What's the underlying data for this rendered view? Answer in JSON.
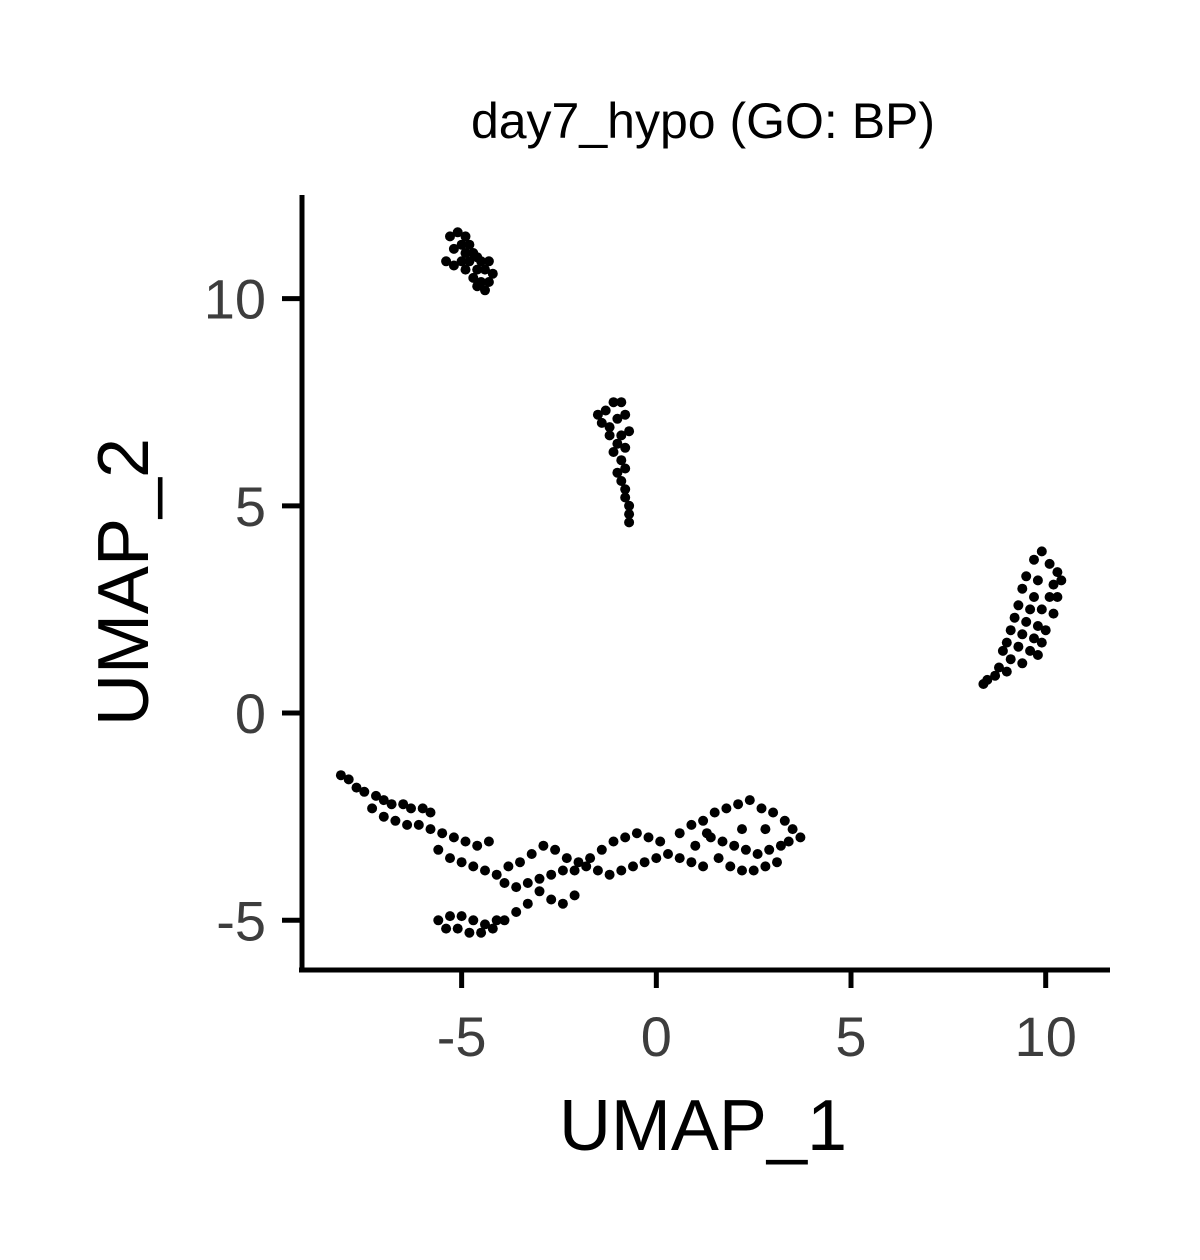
{
  "chart_data": {
    "type": "scatter",
    "title": "day7_hypo (GO: BP)",
    "xlabel": "UMAP_1",
    "ylabel": "UMAP_2",
    "xlim": [
      -9.1,
      11.6
    ],
    "ylim": [
      -6.2,
      12.5
    ],
    "xticks": [
      -5,
      0,
      5,
      10
    ],
    "yticks": [
      -5,
      0,
      5,
      10
    ],
    "xtick_labels": [
      "-5",
      "0",
      "5",
      "10"
    ],
    "ytick_labels": [
      "-5",
      "0",
      "5",
      "10"
    ],
    "grid": false,
    "legend": "none",
    "point_color": "#000000",
    "series": [
      {
        "points": [
          [
            -5.3,
            11.5
          ],
          [
            -5.1,
            11.6
          ],
          [
            -4.9,
            11.5
          ],
          [
            -5.0,
            11.3
          ],
          [
            -4.8,
            11.3
          ],
          [
            -5.2,
            11.2
          ],
          [
            -4.9,
            11.1
          ],
          [
            -4.7,
            11.1
          ],
          [
            -4.6,
            11.0
          ],
          [
            -5.0,
            10.9
          ],
          [
            -4.8,
            10.9
          ],
          [
            -4.5,
            10.9
          ],
          [
            -5.4,
            10.9
          ],
          [
            -5.2,
            10.8
          ],
          [
            -4.9,
            10.7
          ],
          [
            -4.6,
            10.7
          ],
          [
            -4.4,
            10.7
          ],
          [
            -4.7,
            10.5
          ],
          [
            -4.5,
            10.4
          ],
          [
            -4.3,
            10.4
          ],
          [
            -4.6,
            10.3
          ],
          [
            -4.4,
            10.2
          ],
          [
            -4.2,
            10.6
          ],
          [
            -4.3,
            10.9
          ],
          [
            -1.5,
            7.2
          ],
          [
            -1.3,
            7.3
          ],
          [
            -1.1,
            7.5
          ],
          [
            -0.9,
            7.5
          ],
          [
            -1.4,
            7.0
          ],
          [
            -1.2,
            6.9
          ],
          [
            -1.0,
            7.1
          ],
          [
            -0.8,
            7.2
          ],
          [
            -1.2,
            6.7
          ],
          [
            -0.9,
            6.7
          ],
          [
            -0.7,
            6.8
          ],
          [
            -1.0,
            6.5
          ],
          [
            -0.8,
            6.4
          ],
          [
            -1.1,
            6.3
          ],
          [
            -0.9,
            6.1
          ],
          [
            -0.8,
            5.9
          ],
          [
            -1.0,
            5.8
          ],
          [
            -0.9,
            5.6
          ],
          [
            -0.8,
            5.4
          ],
          [
            -0.8,
            5.2
          ],
          [
            -0.7,
            5.0
          ],
          [
            -0.7,
            4.8
          ],
          [
            -0.7,
            4.6
          ],
          [
            9.9,
            3.9
          ],
          [
            9.7,
            3.7
          ],
          [
            10.1,
            3.6
          ],
          [
            10.3,
            3.4
          ],
          [
            9.5,
            3.3
          ],
          [
            9.8,
            3.2
          ],
          [
            10.2,
            3.1
          ],
          [
            10.4,
            3.2
          ],
          [
            9.4,
            3.0
          ],
          [
            9.7,
            2.8
          ],
          [
            10.1,
            2.8
          ],
          [
            10.3,
            2.8
          ],
          [
            9.3,
            2.6
          ],
          [
            9.6,
            2.5
          ],
          [
            9.9,
            2.5
          ],
          [
            10.2,
            2.4
          ],
          [
            9.2,
            2.3
          ],
          [
            9.5,
            2.2
          ],
          [
            9.8,
            2.1
          ],
          [
            10.0,
            2.0
          ],
          [
            9.1,
            2.0
          ],
          [
            9.4,
            1.9
          ],
          [
            9.7,
            1.8
          ],
          [
            9.9,
            1.7
          ],
          [
            9.0,
            1.7
          ],
          [
            9.3,
            1.6
          ],
          [
            9.6,
            1.5
          ],
          [
            9.8,
            1.4
          ],
          [
            8.9,
            1.5
          ],
          [
            9.1,
            1.3
          ],
          [
            9.4,
            1.2
          ],
          [
            8.8,
            1.1
          ],
          [
            9.0,
            1.0
          ],
          [
            8.7,
            0.9
          ],
          [
            8.5,
            0.8
          ],
          [
            8.4,
            0.7
          ],
          [
            -8.1,
            -1.5
          ],
          [
            -7.9,
            -1.6
          ],
          [
            -7.7,
            -1.8
          ],
          [
            -7.5,
            -1.9
          ],
          [
            -7.2,
            -2.0
          ],
          [
            -7.0,
            -2.1
          ],
          [
            -6.8,
            -2.2
          ],
          [
            -6.5,
            -2.2
          ],
          [
            -6.3,
            -2.3
          ],
          [
            -6.0,
            -2.3
          ],
          [
            -5.8,
            -2.4
          ],
          [
            -7.3,
            -2.3
          ],
          [
            -7.0,
            -2.5
          ],
          [
            -6.7,
            -2.6
          ],
          [
            -6.4,
            -2.7
          ],
          [
            -6.1,
            -2.7
          ],
          [
            -5.8,
            -2.8
          ],
          [
            -5.5,
            -2.9
          ],
          [
            -5.2,
            -3.0
          ],
          [
            -4.9,
            -3.1
          ],
          [
            -4.6,
            -3.2
          ],
          [
            -4.3,
            -3.1
          ],
          [
            -5.6,
            -3.3
          ],
          [
            -5.3,
            -3.5
          ],
          [
            -5.0,
            -3.6
          ],
          [
            -4.7,
            -3.7
          ],
          [
            -4.4,
            -3.8
          ],
          [
            -4.1,
            -3.9
          ],
          [
            -3.8,
            -3.7
          ],
          [
            -3.5,
            -3.6
          ],
          [
            -3.2,
            -3.4
          ],
          [
            -2.9,
            -3.2
          ],
          [
            -2.6,
            -3.3
          ],
          [
            -2.3,
            -3.5
          ],
          [
            -2.0,
            -3.6
          ],
          [
            -1.7,
            -3.5
          ],
          [
            -1.4,
            -3.3
          ],
          [
            -1.1,
            -3.1
          ],
          [
            -0.8,
            -3.0
          ],
          [
            -0.5,
            -2.9
          ],
          [
            -0.2,
            -3.0
          ],
          [
            0.1,
            -3.1
          ],
          [
            -3.9,
            -4.1
          ],
          [
            -3.6,
            -4.2
          ],
          [
            -3.3,
            -4.1
          ],
          [
            -3.0,
            -4.0
          ],
          [
            -2.7,
            -3.9
          ],
          [
            -2.4,
            -3.8
          ],
          [
            -2.1,
            -3.8
          ],
          [
            -1.8,
            -3.7
          ],
          [
            -1.5,
            -3.8
          ],
          [
            -1.2,
            -3.9
          ],
          [
            -0.9,
            -3.8
          ],
          [
            -0.6,
            -3.7
          ],
          [
            -0.3,
            -3.6
          ],
          [
            0.0,
            -3.5
          ],
          [
            0.3,
            -3.4
          ],
          [
            0.6,
            -3.5
          ],
          [
            0.9,
            -3.6
          ],
          [
            1.2,
            -3.7
          ],
          [
            -3.0,
            -4.3
          ],
          [
            -2.7,
            -4.5
          ],
          [
            -2.4,
            -4.6
          ],
          [
            -2.1,
            -4.4
          ],
          [
            -3.3,
            -4.6
          ],
          [
            -3.6,
            -4.8
          ],
          [
            -3.9,
            -5.0
          ],
          [
            -4.2,
            -5.2
          ],
          [
            -4.5,
            -5.3
          ],
          [
            -4.8,
            -5.3
          ],
          [
            -5.1,
            -5.2
          ],
          [
            -5.4,
            -5.2
          ],
          [
            -5.6,
            -5.0
          ],
          [
            -5.3,
            -4.9
          ],
          [
            -5.0,
            -4.9
          ],
          [
            -4.7,
            -5.0
          ],
          [
            -4.4,
            -5.1
          ],
          [
            -4.1,
            -5.0
          ],
          [
            0.6,
            -2.9
          ],
          [
            0.9,
            -2.7
          ],
          [
            1.2,
            -2.6
          ],
          [
            1.5,
            -2.4
          ],
          [
            1.8,
            -2.3
          ],
          [
            2.1,
            -2.2
          ],
          [
            2.4,
            -2.1
          ],
          [
            2.7,
            -2.3
          ],
          [
            3.0,
            -2.4
          ],
          [
            3.3,
            -2.6
          ],
          [
            3.5,
            -2.8
          ],
          [
            3.7,
            -3.0
          ],
          [
            1.4,
            -3.0
          ],
          [
            1.7,
            -3.1
          ],
          [
            2.0,
            -3.2
          ],
          [
            2.3,
            -3.3
          ],
          [
            2.6,
            -3.4
          ],
          [
            2.9,
            -3.3
          ],
          [
            3.2,
            -3.2
          ],
          [
            3.4,
            -3.1
          ],
          [
            1.6,
            -3.5
          ],
          [
            1.9,
            -3.7
          ],
          [
            2.2,
            -3.8
          ],
          [
            2.5,
            -3.8
          ],
          [
            2.8,
            -3.7
          ],
          [
            3.1,
            -3.6
          ],
          [
            1.3,
            -2.9
          ],
          [
            2.2,
            -2.8
          ],
          [
            2.8,
            -2.8
          ],
          [
            1.0,
            -3.2
          ]
        ]
      }
    ]
  }
}
